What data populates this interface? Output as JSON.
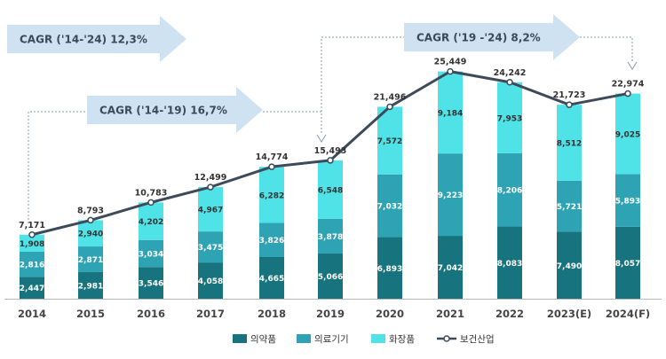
{
  "chart_data": {
    "type": "bar",
    "stacked": true,
    "categories": [
      "2014",
      "2015",
      "2016",
      "2017",
      "2018",
      "2019",
      "2020",
      "2021",
      "2022",
      "2023(E)",
      "2024(F)"
    ],
    "series": [
      {
        "name": "의약품",
        "color": "#17737d",
        "values": [
          2447,
          2981,
          3546,
          4058,
          4665,
          5066,
          6893,
          7042,
          8083,
          7490,
          8057
        ]
      },
      {
        "name": "의료기기",
        "color": "#2ea3b3",
        "values": [
          2816,
          2871,
          3034,
          3475,
          3826,
          3878,
          7032,
          9223,
          8206,
          5721,
          5893
        ]
      },
      {
        "name": "화장품",
        "color": "#4fe3e8",
        "values": [
          1908,
          2940,
          4202,
          4967,
          6282,
          6548,
          7572,
          9184,
          7953,
          8512,
          9025
        ]
      }
    ],
    "line": {
      "name": "보건산업",
      "color": "#3e4a59",
      "values": [
        7171,
        8793,
        10783,
        12499,
        14774,
        15493,
        21496,
        25449,
        24242,
        21723,
        22974
      ]
    },
    "segment_labels": [
      [
        "2,447",
        "2,816",
        "1,908"
      ],
      [
        "2,981",
        "2,871",
        "2,940"
      ],
      [
        "3,546",
        "3,034",
        "4,202"
      ],
      [
        "4,058",
        "3,475",
        "4,967"
      ],
      [
        "4,665",
        "3,826",
        "6,282"
      ],
      [
        "5,066",
        "3,878",
        "6,548"
      ],
      [
        "6,893",
        "7,032",
        "7,572"
      ],
      [
        "7,042",
        "9,223",
        "9,184"
      ],
      [
        "8,083",
        "8,206",
        "7,953"
      ],
      [
        "7,490",
        "5,721",
        "8,512"
      ],
      [
        "8,057",
        "5,893",
        "9,025"
      ]
    ],
    "total_labels": [
      "7,171",
      "8,793",
      "10,783",
      "12,499",
      "14,774",
      "15,493",
      "21,496",
      "25,449",
      "24,242",
      "21,723",
      "22,974"
    ],
    "annotations": [
      "CAGR ('14-'24) 12,3%",
      "CAGR ('14-'19) 16,7%",
      "CAGR ('19 -'24) 8,2%"
    ],
    "legend_position": "bottom",
    "ylim": [
      0,
      27000
    ],
    "grid": false
  }
}
